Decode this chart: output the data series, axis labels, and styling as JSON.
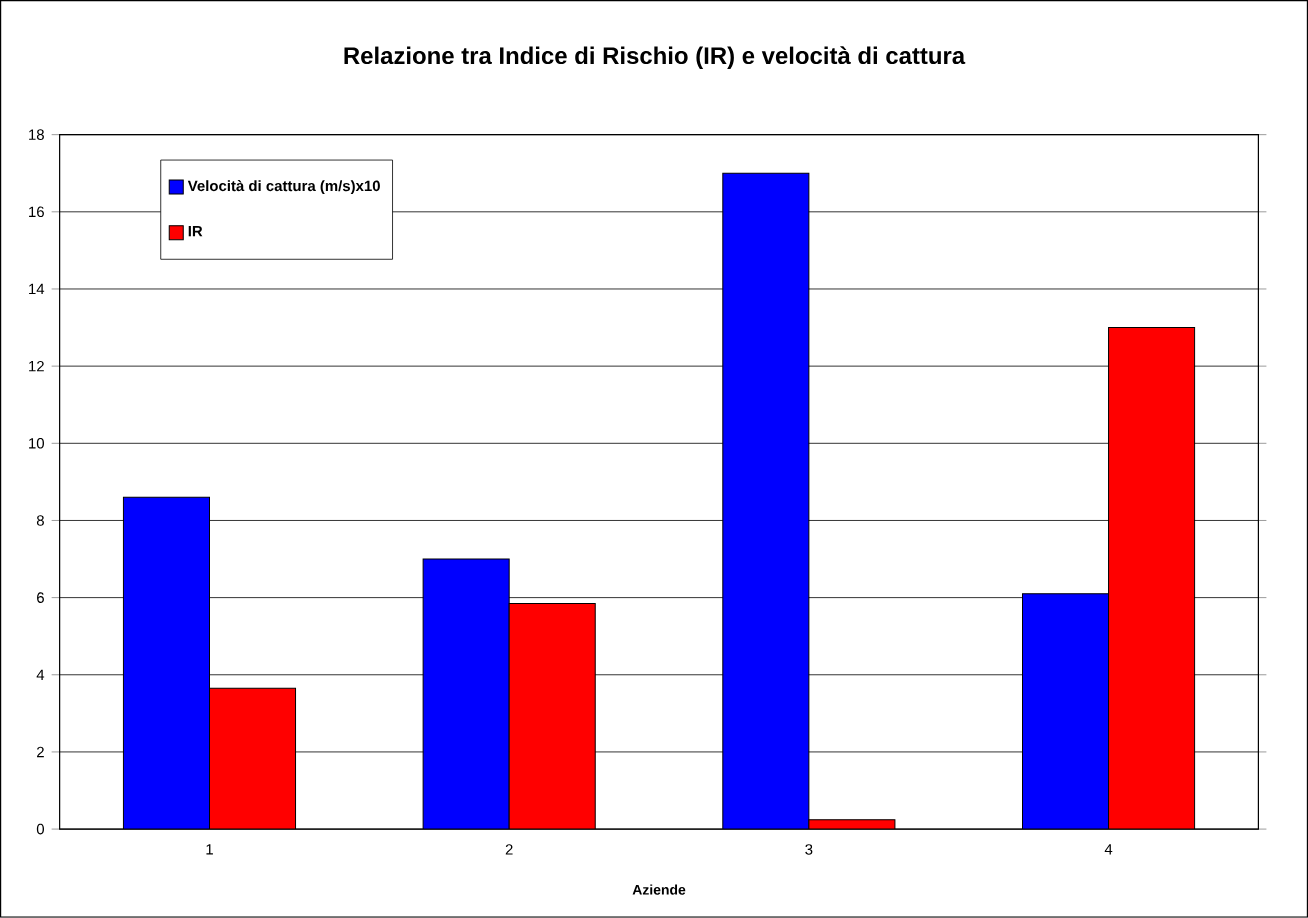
{
  "chart_data": {
    "type": "bar",
    "title": "Relazione tra Indice di Rischio (IR) e velocità di cattura",
    "xlabel": "Aziende",
    "categories": [
      "1",
      "2",
      "3",
      "4"
    ],
    "series": [
      {
        "name": "Velocità di cattura (m/s)x10",
        "color": "#0000ff",
        "values": [
          8.6,
          7.0,
          17.0,
          6.1
        ]
      },
      {
        "name": "IR",
        "color": "#ff0000",
        "values": [
          3.65,
          5.85,
          0.24,
          13.0
        ]
      }
    ],
    "ylim": [
      0,
      18
    ],
    "yticks": [
      0,
      2,
      4,
      6,
      8,
      10,
      12,
      14,
      16,
      18
    ],
    "grid": "y",
    "legend": "top left"
  }
}
